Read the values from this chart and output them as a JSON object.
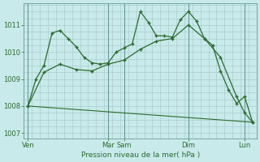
{
  "background_color": "#c8eaea",
  "grid_color": "#aacccc",
  "line_color": "#2d6b2d",
  "marker_color": "#2d6b2d",
  "tick_color": "#2d6b2d",
  "xlabel_label": "Pression niveau de la mer( hPa )",
  "ylim": [
    1006.8,
    1011.8
  ],
  "yticks": [
    1007,
    1008,
    1009,
    1010,
    1011
  ],
  "xlim": [
    0,
    29
  ],
  "x_day_ticks": [
    0.5,
    10.5,
    12.5,
    20.5,
    27.5
  ],
  "x_day_labels": [
    "Ven",
    "Mar",
    "Sam",
    "Dim",
    "Lun"
  ],
  "x_vlines": [
    0.5,
    10.5,
    12.5,
    20.5,
    27.5
  ],
  "series1_x": [
    0.5,
    1.5,
    2.5,
    3.5,
    4.5,
    5.5,
    6.5,
    7.5,
    8.5,
    9.5,
    10.5,
    11.5,
    12.5,
    13.5,
    14.5,
    15.5,
    16.5,
    17.5,
    18.5,
    19.5,
    20.5,
    21.5,
    22.5,
    23.5,
    24.5,
    25.5,
    26.5,
    27.5,
    28.5
  ],
  "series1_y": [
    1008.0,
    1009.0,
    1009.5,
    1010.7,
    1010.8,
    1010.5,
    1010.2,
    1009.8,
    1009.6,
    1009.55,
    1009.6,
    1010.0,
    1010.15,
    1010.3,
    1011.5,
    1011.1,
    1010.6,
    1010.6,
    1010.55,
    1011.2,
    1011.5,
    1011.15,
    1010.5,
    1010.25,
    1009.3,
    1008.6,
    1008.1,
    1008.35,
    1007.4
  ],
  "series2_x": [
    0.5,
    2.5,
    4.5,
    6.5,
    8.5,
    10.5,
    12.5,
    14.5,
    16.5,
    18.5,
    20.5,
    22.5,
    24.5,
    26.5,
    27.5,
    28.5
  ],
  "series2_y": [
    1008.0,
    1009.25,
    1009.55,
    1009.35,
    1009.3,
    1009.55,
    1009.7,
    1010.1,
    1010.4,
    1010.5,
    1011.0,
    1010.5,
    1009.8,
    1008.35,
    1007.75,
    1007.4
  ],
  "series3_x": [
    0.5,
    28.5
  ],
  "series3_y": [
    1008.0,
    1007.4
  ]
}
